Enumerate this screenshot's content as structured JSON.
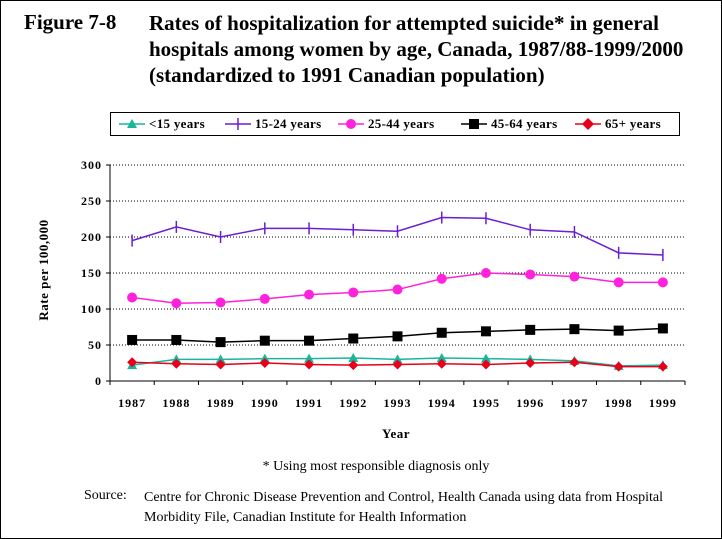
{
  "figure": {
    "number": "Figure 7-8",
    "title": "Rates of hospitalization for attempted suicide* in general hospitals among women by age, Canada, 1987/88-1999/2000 (standardized to 1991 Canadian population)"
  },
  "footnote": "* Using most responsible diagnosis only",
  "source": {
    "label": "Source:",
    "text": "Centre for Chronic Disease Prevention and Control, Health Canada using data from Hospital Morbidity File, Canadian Institute for Health Information"
  },
  "chart_data": {
    "type": "line",
    "title": "Rates of hospitalization for attempted suicide* in general hospitals among women by age, Canada, 1987/88-1999/2000 (standardized to 1991 Canadian population)",
    "xlabel": "Year",
    "ylabel": "Rate per 100,000",
    "categories": [
      "1987",
      "1988",
      "1989",
      "1990",
      "1991",
      "1992",
      "1993",
      "1994",
      "1995",
      "1996",
      "1997",
      "1998",
      "1999"
    ],
    "yticks": [
      "0",
      "50",
      "100",
      "150",
      "200",
      "250",
      "300"
    ],
    "ylim": [
      0,
      300
    ],
    "grid": "horizontal dotted",
    "legend_position": "top",
    "series": [
      {
        "name": "<15 years",
        "color": "#19b69a",
        "marker": "triangle",
        "values": [
          22,
          30,
          30,
          31,
          31,
          32,
          30,
          32,
          31,
          30,
          28,
          21,
          22
        ]
      },
      {
        "name": "15-24 years",
        "color": "#6a1fd0",
        "marker": "plus",
        "values": [
          195,
          214,
          200,
          212,
          212,
          210,
          208,
          227,
          226,
          210,
          207,
          178,
          175
        ]
      },
      {
        "name": "25-44 years",
        "color": "#ff22dd",
        "marker": "circle",
        "values": [
          116,
          108,
          109,
          114,
          120,
          123,
          127,
          142,
          150,
          148,
          145,
          137,
          137
        ]
      },
      {
        "name": "45-64 years",
        "color": "#000000",
        "marker": "square",
        "values": [
          57,
          57,
          54,
          56,
          56,
          59,
          62,
          67,
          69,
          71,
          72,
          70,
          73
        ]
      },
      {
        "name": "65+ years",
        "color": "#e8001a",
        "marker": "diamond",
        "values": [
          26,
          24,
          23,
          25,
          23,
          22,
          23,
          24,
          23,
          25,
          26,
          20,
          20
        ]
      }
    ]
  }
}
